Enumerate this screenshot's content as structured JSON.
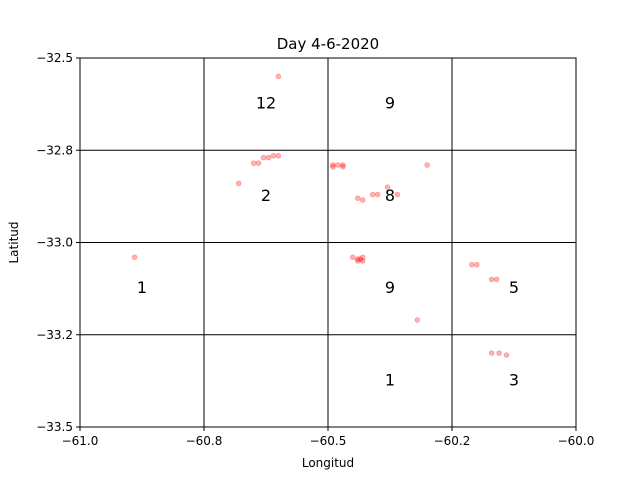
{
  "chart_data": {
    "type": "scatter",
    "title": "Day 4-6-2020",
    "xlabel": "Longitud",
    "ylabel": "Latitud",
    "xlim": [
      -61.0,
      -60.0
    ],
    "ylim": [
      -33.5,
      -32.5
    ],
    "xticks": [
      -61.0,
      -60.8,
      -60.5,
      -60.2,
      -60.0
    ],
    "xtick_labels": [
      "−61.0",
      "−60.8",
      "−60.5",
      "−60.2",
      "−60.0"
    ],
    "yticks": [
      -32.5,
      -32.8,
      -33.0,
      -33.2,
      -33.5
    ],
    "ytick_labels": [
      "−32.5",
      "−32.8",
      "−33.0",
      "−33.2",
      "−33.5"
    ],
    "grid_x": [
      -60.75,
      -60.5,
      -60.25
    ],
    "grid_y": [
      -32.75,
      -33.0,
      -33.25
    ],
    "marker_color": "#ff0000",
    "points": [
      {
        "x": -60.6,
        "y": -32.55
      },
      {
        "x": -60.63,
        "y": -32.77
      },
      {
        "x": -60.62,
        "y": -32.77
      },
      {
        "x": -60.61,
        "y": -32.765
      },
      {
        "x": -60.6,
        "y": -32.765
      },
      {
        "x": -60.65,
        "y": -32.785
      },
      {
        "x": -60.64,
        "y": -32.785
      },
      {
        "x": -60.68,
        "y": -32.84
      },
      {
        "x": -60.49,
        "y": -32.79
      },
      {
        "x": -60.48,
        "y": -32.79
      },
      {
        "x": -60.47,
        "y": -32.79
      },
      {
        "x": -60.49,
        "y": -32.795
      },
      {
        "x": -60.47,
        "y": -32.795
      },
      {
        "x": -60.3,
        "y": -32.79
      },
      {
        "x": -60.44,
        "y": -32.88
      },
      {
        "x": -60.43,
        "y": -32.885
      },
      {
        "x": -60.41,
        "y": -32.87
      },
      {
        "x": -60.4,
        "y": -32.87
      },
      {
        "x": -60.38,
        "y": -32.85
      },
      {
        "x": -60.36,
        "y": -32.87
      },
      {
        "x": -60.89,
        "y": -33.04
      },
      {
        "x": -60.45,
        "y": -33.04
      },
      {
        "x": -60.44,
        "y": -33.045
      },
      {
        "x": -60.435,
        "y": -33.045
      },
      {
        "x": -60.43,
        "y": -33.05
      },
      {
        "x": -60.44,
        "y": -33.05
      },
      {
        "x": -60.43,
        "y": -33.04
      },
      {
        "x": -60.21,
        "y": -33.06
      },
      {
        "x": -60.2,
        "y": -33.06
      },
      {
        "x": -60.17,
        "y": -33.1
      },
      {
        "x": -60.16,
        "y": -33.1
      },
      {
        "x": -60.32,
        "y": -33.21
      },
      {
        "x": -60.17,
        "y": -33.3
      },
      {
        "x": -60.155,
        "y": -33.3
      },
      {
        "x": -60.14,
        "y": -33.305
      }
    ],
    "cell_labels": [
      {
        "text": "12",
        "x": -60.625,
        "y": -32.625
      },
      {
        "text": "9",
        "x": -60.375,
        "y": -32.625
      },
      {
        "text": "2",
        "x": -60.625,
        "y": -32.875
      },
      {
        "text": "8",
        "x": -60.375,
        "y": -32.875
      },
      {
        "text": "1",
        "x": -60.875,
        "y": -33.125
      },
      {
        "text": "9",
        "x": -60.375,
        "y": -33.125
      },
      {
        "text": "5",
        "x": -60.125,
        "y": -33.125
      },
      {
        "text": "1",
        "x": -60.375,
        "y": -33.375
      },
      {
        "text": "3",
        "x": -60.125,
        "y": -33.375
      }
    ]
  }
}
